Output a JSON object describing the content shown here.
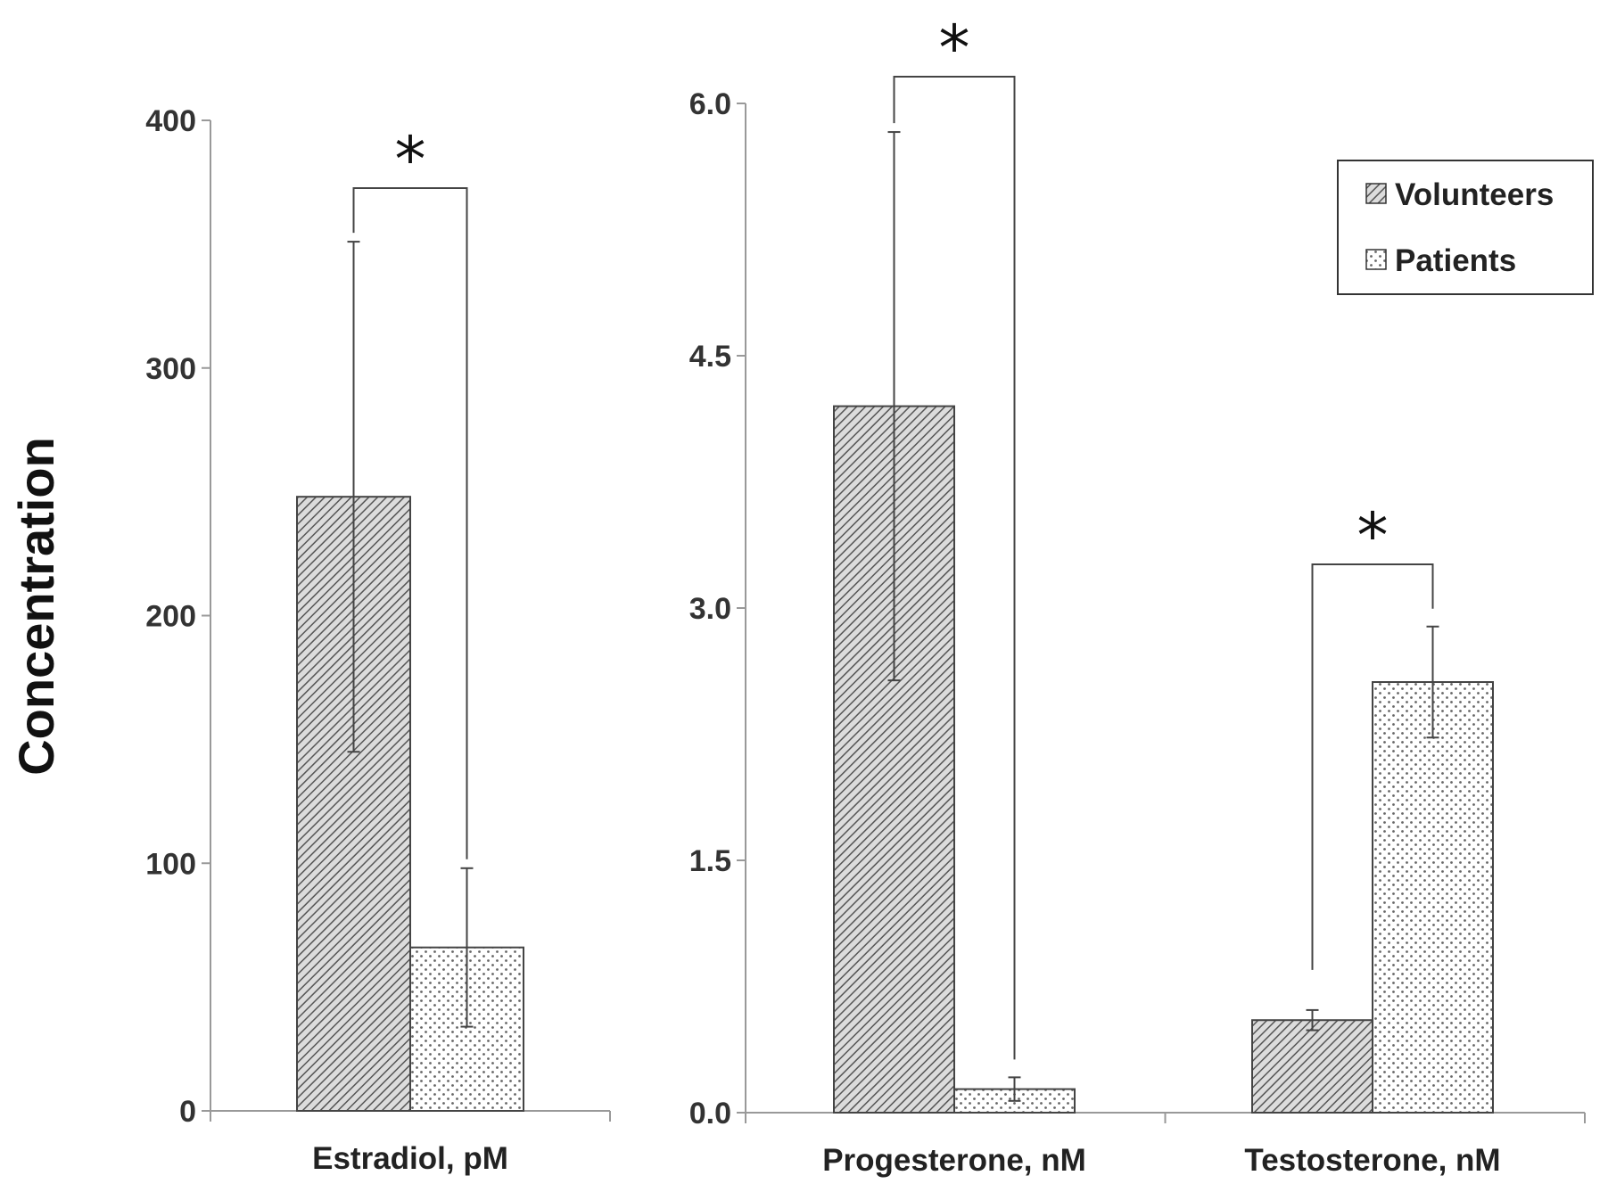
{
  "chart_data": [
    {
      "type": "bar",
      "ylabel": "Concentration",
      "ylim": [
        0,
        400
      ],
      "yticks": [
        "0",
        "100",
        "200",
        "300",
        "400"
      ],
      "categories": [
        "Estradiol, pM"
      ],
      "series": [
        {
          "name": "Volunteers",
          "values": [
            248
          ],
          "errors": [
            103
          ]
        },
        {
          "name": "Patients",
          "values": [
            66
          ],
          "errors": [
            32
          ]
        }
      ],
      "significance": [
        {
          "category": 0,
          "label": "*"
        }
      ]
    },
    {
      "type": "bar",
      "ylim": [
        0,
        6
      ],
      "yticks": [
        "0.0",
        "1.5",
        "3.0",
        "4.5",
        "6.0"
      ],
      "categories": [
        "Progesterone, nM",
        "Testosterone, nM"
      ],
      "series": [
        {
          "name": "Volunteers",
          "values": [
            4.2,
            0.55
          ],
          "errors": [
            1.63,
            0.06
          ]
        },
        {
          "name": "Patients",
          "values": [
            0.14,
            2.56
          ],
          "errors": [
            0.07,
            0.33
          ]
        }
      ],
      "significance": [
        {
          "category": 0,
          "label": "*"
        },
        {
          "category": 1,
          "label": "*"
        }
      ]
    }
  ],
  "legend": {
    "position": "top-right",
    "items": [
      "Volunteers",
      "Patients"
    ]
  }
}
